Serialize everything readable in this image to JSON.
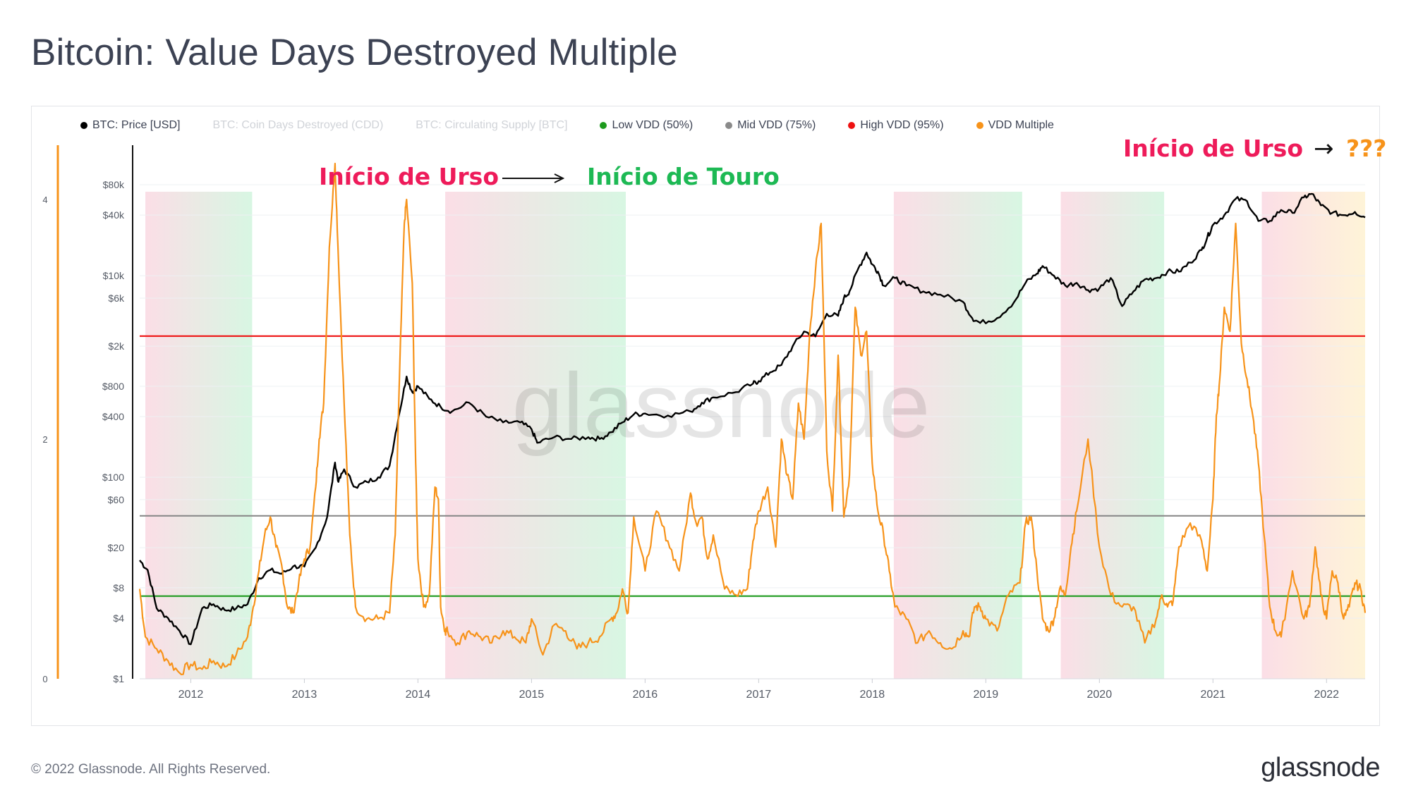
{
  "title": "Bitcoin: Value Days Destroyed Multiple",
  "footer": "© 2022 Glassnode. All Rights Reserved.",
  "brand": "glassnode",
  "watermark": "glassnode",
  "legend": [
    {
      "label": "BTC: Price [USD]",
      "color": "#000000",
      "active": true
    },
    {
      "label": "BTC: Coin Days Destroyed (CDD)",
      "color": "#d0d3d8",
      "active": false
    },
    {
      "label": "BTC: Circulating Supply [BTC]",
      "color": "#d0d3d8",
      "active": false
    },
    {
      "label": "Low VDD (50%)",
      "color": "#1d9a1d",
      "active": true
    },
    {
      "label": "Mid VDD (75%)",
      "color": "#8a8a8a",
      "active": true
    },
    {
      "label": "High VDD (95%)",
      "color": "#ee1111",
      "active": true
    },
    {
      "label": "VDD Multiple",
      "color": "#f7931a",
      "active": true
    }
  ],
  "annotations": {
    "bear_label": "Início de Urso",
    "bull_label": "Início de Touro",
    "bear_label_2": "Início de Urso",
    "question": "???",
    "arrow": "→",
    "colors": {
      "bear": "#ee1b5a",
      "bull": "#1db954",
      "question": "#f7931a"
    }
  },
  "chart_data": {
    "type": "line",
    "x_axis": {
      "ticks": [
        "2012",
        "2013",
        "2014",
        "2015",
        "2016",
        "2017",
        "2018",
        "2019",
        "2020",
        "2021",
        "2022"
      ],
      "range": [
        2011.55,
        2022.34
      ]
    },
    "y_left": {
      "ticks": [
        "0",
        "2",
        "4"
      ],
      "range": [
        0,
        4.3
      ],
      "series": "VDD Multiple"
    },
    "y_right": {
      "scale": "log",
      "ticks": [
        "$1",
        "$4",
        "$8",
        "$20",
        "$60",
        "$100",
        "$400",
        "$800",
        "$2k",
        "$6k",
        "$10k",
        "$40k",
        "$80k"
      ],
      "range": [
        1,
        130000
      ],
      "series": "BTC: Price [USD]"
    },
    "horizontal_lines": [
      {
        "name": "Low VDD (50%)",
        "value": 0.69,
        "color": "#1d9a1d"
      },
      {
        "name": "Mid VDD (75%)",
        "value": 1.36,
        "color": "#8a8a8a"
      },
      {
        "name": "High VDD (95%)",
        "value": 2.86,
        "color": "#ee1111"
      }
    ],
    "regions": [
      {
        "start": 2011.6,
        "end": 2012.54,
        "from": "bear",
        "to": "bull"
      },
      {
        "start": 2014.24,
        "end": 2015.83,
        "from": "bear",
        "to": "bull"
      },
      {
        "start": 2018.19,
        "end": 2019.32,
        "from": "bear",
        "to": "bull"
      },
      {
        "start": 2019.66,
        "end": 2020.57,
        "from": "bear",
        "to": "bull"
      },
      {
        "start": 2021.43,
        "end": 2022.34,
        "from": "bear",
        "to": "unknown"
      }
    ],
    "series": [
      {
        "name": "BTC: Price [USD]",
        "axis": "right",
        "color": "#000000",
        "x": [
          2011.55,
          2011.62,
          2011.7,
          2011.8,
          2011.9,
          2012.0,
          2012.1,
          2012.2,
          2012.3,
          2012.4,
          2012.5,
          2012.6,
          2012.7,
          2012.8,
          2012.9,
          2013.0,
          2013.1,
          2013.2,
          2013.27,
          2013.3,
          2013.35,
          2013.45,
          2013.55,
          2013.65,
          2013.75,
          2013.83,
          2013.9,
          2013.95,
          2014.0,
          2014.1,
          2014.2,
          2014.3,
          2014.45,
          2014.6,
          2014.75,
          2014.9,
          2015.0,
          2015.05,
          2015.2,
          2015.35,
          2015.5,
          2015.6,
          2015.7,
          2015.8,
          2015.9,
          2016.0,
          2016.2,
          2016.4,
          2016.5,
          2016.6,
          2016.8,
          2016.95,
          2017.0,
          2017.1,
          2017.2,
          2017.3,
          2017.4,
          2017.5,
          2017.6,
          2017.7,
          2017.75,
          2017.8,
          2017.88,
          2017.95,
          2018.0,
          2018.05,
          2018.1,
          2018.2,
          2018.3,
          2018.45,
          2018.6,
          2018.8,
          2018.88,
          2018.95,
          2019.1,
          2019.25,
          2019.35,
          2019.45,
          2019.5,
          2019.6,
          2019.7,
          2019.8,
          2019.9,
          2020.0,
          2020.1,
          2020.2,
          2020.3,
          2020.4,
          2020.5,
          2020.6,
          2020.7,
          2020.8,
          2020.9,
          2020.95,
          2021.0,
          2021.1,
          2021.2,
          2021.3,
          2021.4,
          2021.5,
          2021.6,
          2021.7,
          2021.8,
          2021.87,
          2021.95,
          2022.05,
          2022.15,
          2022.25,
          2022.34
        ],
        "y": [
          15,
          12,
          5,
          4,
          3,
          2.2,
          5,
          5.5,
          4.8,
          5,
          5.5,
          10,
          12,
          11,
          13,
          13,
          20,
          40,
          140,
          90,
          120,
          80,
          90,
          100,
          130,
          400,
          1000,
          700,
          800,
          600,
          500,
          450,
          550,
          400,
          350,
          350,
          300,
          220,
          250,
          240,
          250,
          240,
          280,
          350,
          420,
          430,
          410,
          450,
          550,
          620,
          700,
          850,
          900,
          1100,
          1300,
          2000,
          2800,
          2500,
          4200,
          4000,
          6000,
          7000,
          12000,
          17000,
          13000,
          11000,
          8000,
          9500,
          8000,
          7000,
          6500,
          5500,
          3800,
          3400,
          3800,
          5500,
          8500,
          10500,
          12500,
          10000,
          8000,
          8500,
          7200,
          7500,
          9500,
          5000,
          7000,
          9200,
          9500,
          11000,
          11000,
          13500,
          18000,
          24000,
          32000,
          40000,
          58000,
          55000,
          35000,
          35000,
          45000,
          42000,
          60000,
          65000,
          50000,
          42000,
          40000,
          43000,
          38000
        ]
      },
      {
        "name": "VDD Multiple",
        "axis": "left",
        "color": "#f7931a",
        "x": [
          2011.55,
          2011.6,
          2011.7,
          2011.8,
          2011.9,
          2012.0,
          2012.1,
          2012.2,
          2012.3,
          2012.4,
          2012.5,
          2012.55,
          2012.6,
          2012.65,
          2012.7,
          2012.75,
          2012.8,
          2012.85,
          2012.9,
          2012.95,
          2013.0,
          2013.05,
          2013.1,
          2013.13,
          2013.17,
          2013.22,
          2013.27,
          2013.3,
          2013.35,
          2013.4,
          2013.45,
          2013.55,
          2013.65,
          2013.75,
          2013.8,
          2013.84,
          2013.88,
          2013.9,
          2013.95,
          2013.98,
          2014.0,
          2014.05,
          2014.1,
          2014.15,
          2014.18,
          2014.2,
          2014.24,
          2014.26,
          2014.35,
          2014.45,
          2014.55,
          2014.65,
          2014.75,
          2014.85,
          2014.95,
          2015.0,
          2015.1,
          2015.2,
          2015.3,
          2015.4,
          2015.5,
          2015.6,
          2015.7,
          2015.75,
          2015.8,
          2015.85,
          2015.9,
          2016.0,
          2016.1,
          2016.2,
          2016.3,
          2016.4,
          2016.45,
          2016.5,
          2016.55,
          2016.6,
          2016.7,
          2016.8,
          2016.9,
          2016.95,
          2017.0,
          2017.08,
          2017.15,
          2017.2,
          2017.25,
          2017.3,
          2017.35,
          2017.4,
          2017.45,
          2017.5,
          2017.55,
          2017.6,
          2017.65,
          2017.7,
          2017.75,
          2017.8,
          2017.85,
          2017.9,
          2017.95,
          2018.0,
          2018.05,
          2018.1,
          2018.15,
          2018.2,
          2018.3,
          2018.4,
          2018.5,
          2018.6,
          2018.7,
          2018.8,
          2018.85,
          2018.9,
          2018.95,
          2019.0,
          2019.1,
          2019.2,
          2019.3,
          2019.35,
          2019.4,
          2019.45,
          2019.5,
          2019.55,
          2019.6,
          2019.65,
          2019.7,
          2019.75,
          2019.8,
          2019.9,
          2020.0,
          2020.1,
          2020.2,
          2020.3,
          2020.4,
          2020.5,
          2020.55,
          2020.6,
          2020.65,
          2020.7,
          2020.8,
          2020.9,
          2020.95,
          2021.0,
          2021.03,
          2021.06,
          2021.1,
          2021.15,
          2021.2,
          2021.25,
          2021.3,
          2021.35,
          2021.4,
          2021.45,
          2021.5,
          2021.55,
          2021.6,
          2021.7,
          2021.8,
          2021.85,
          2021.9,
          2021.95,
          2022.0,
          2022.05,
          2022.1,
          2022.15,
          2022.2,
          2022.25,
          2022.3,
          2022.34
        ],
        "y": [
          0.75,
          0.35,
          0.25,
          0.15,
          0.05,
          0.12,
          0.08,
          0.15,
          0.1,
          0.2,
          0.35,
          0.6,
          0.9,
          1.2,
          1.35,
          1.1,
          0.95,
          0.6,
          0.55,
          0.8,
          1.0,
          1.1,
          1.6,
          2.0,
          2.3,
          3.6,
          4.3,
          3.5,
          2.3,
          1.2,
          0.6,
          0.5,
          0.5,
          0.55,
          1.2,
          2.6,
          3.8,
          4.0,
          3.3,
          1.8,
          1.0,
          0.6,
          0.7,
          1.6,
          1.5,
          0.6,
          0.4,
          0.4,
          0.3,
          0.4,
          0.35,
          0.3,
          0.4,
          0.35,
          0.3,
          0.5,
          0.2,
          0.45,
          0.4,
          0.25,
          0.3,
          0.35,
          0.5,
          0.55,
          0.75,
          0.55,
          1.35,
          0.9,
          1.4,
          1.15,
          0.9,
          1.55,
          1.3,
          1.35,
          1.0,
          1.2,
          0.75,
          0.7,
          0.75,
          1.15,
          1.4,
          1.6,
          1.1,
          2.0,
          1.7,
          1.5,
          2.3,
          2.0,
          2.9,
          3.4,
          3.8,
          1.9,
          1.4,
          2.7,
          1.35,
          1.7,
          3.1,
          2.7,
          2.9,
          1.8,
          1.4,
          1.2,
          0.9,
          0.6,
          0.5,
          0.3,
          0.4,
          0.3,
          0.25,
          0.4,
          0.35,
          0.6,
          0.6,
          0.5,
          0.4,
          0.7,
          0.8,
          1.3,
          1.35,
          0.9,
          0.5,
          0.4,
          0.5,
          0.75,
          0.7,
          1.1,
          1.4,
          2.0,
          1.1,
          0.7,
          0.6,
          0.6,
          0.3,
          0.5,
          0.7,
          0.6,
          0.65,
          1.1,
          1.3,
          1.15,
          0.9,
          1.5,
          2.2,
          2.5,
          3.1,
          2.9,
          3.8,
          2.8,
          2.5,
          2.2,
          1.8,
          1.2,
          0.6,
          0.4,
          0.35,
          0.9,
          0.5,
          0.6,
          1.1,
          0.7,
          0.5,
          0.9,
          0.8,
          0.5,
          0.6,
          0.8,
          0.75,
          0.55
        ]
      }
    ]
  }
}
